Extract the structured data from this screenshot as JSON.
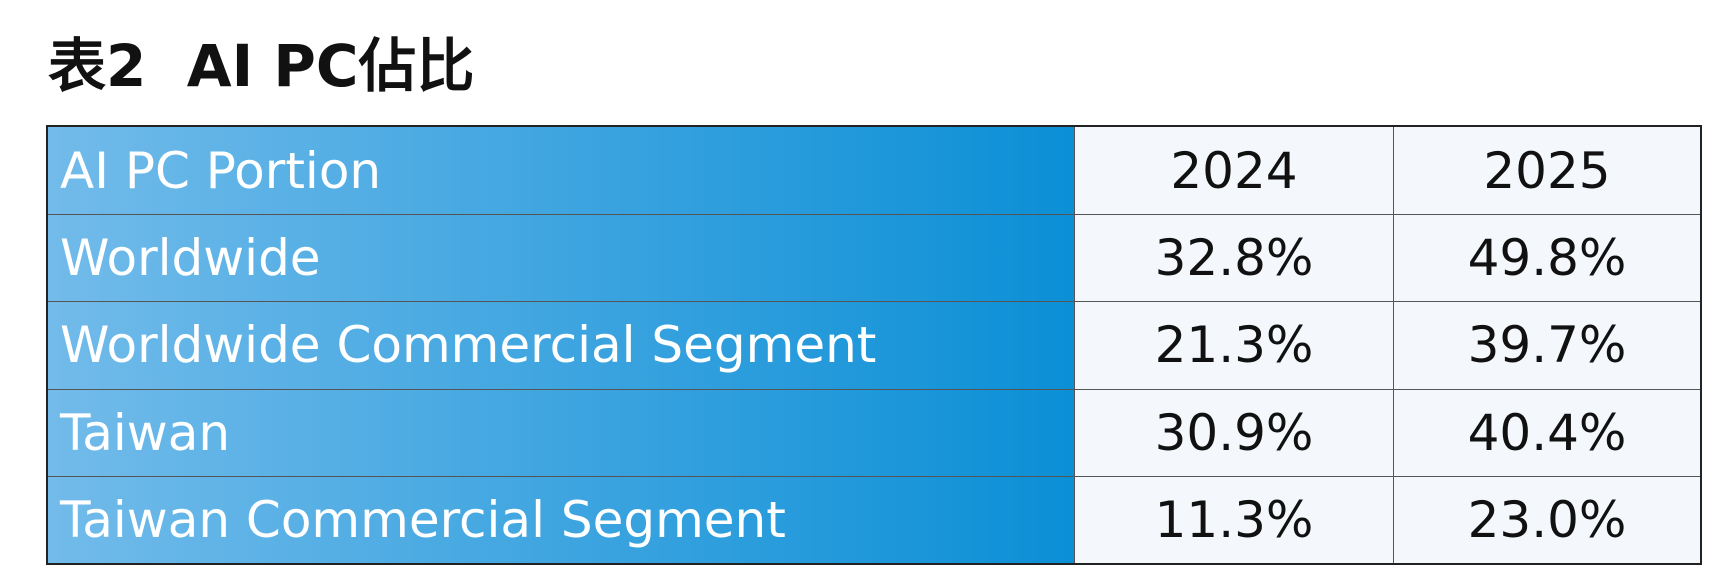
{
  "title": "表2  AI PC佔比",
  "table": {
    "header": [
      "AI PC Portion",
      "2024",
      "2025"
    ],
    "rows": [
      [
        "Worldwide",
        "32.8%",
        "49.8%"
      ],
      [
        "Worldwide Commercial Segment",
        "21.3%",
        "39.7%"
      ],
      [
        "Taiwan",
        "30.9%",
        "40.4%"
      ],
      [
        "Taiwan Commercial Segment",
        "11.3%",
        "23.0%"
      ]
    ]
  }
}
